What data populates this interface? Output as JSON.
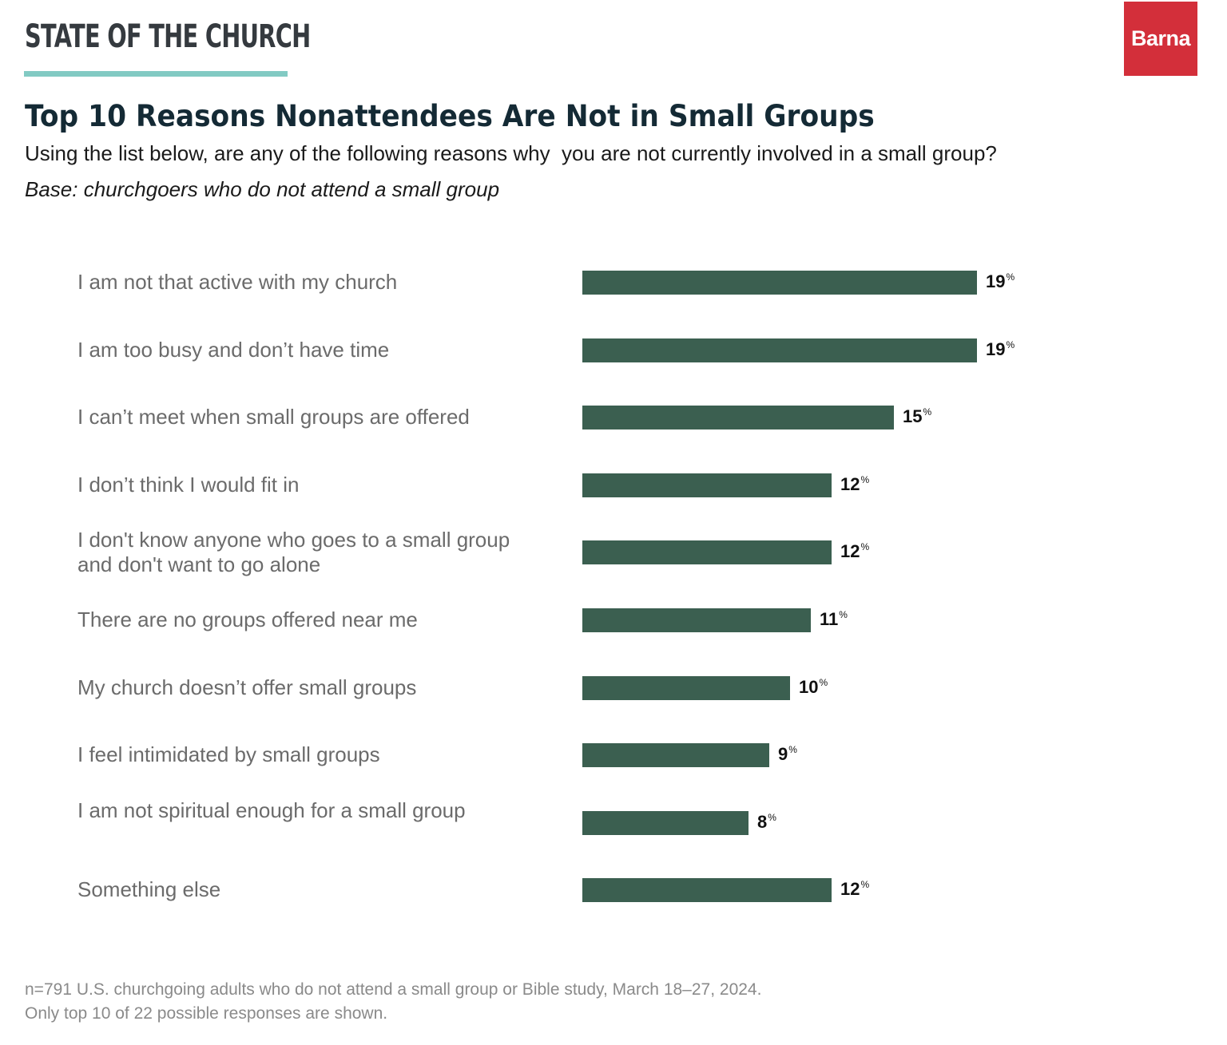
{
  "header": {
    "brand": "STATE OF THE CHURCH",
    "logo": "Barna",
    "colors": {
      "brand_rule": "#82cac3",
      "logo_bg": "#d32f3a",
      "bar": "#3b5f50"
    }
  },
  "chart_data": {
    "type": "bar",
    "orientation": "horizontal",
    "title": "Top 10 Reasons Nonattendees Are Not in Small Groups",
    "subtitle": "Using the list below, are any of the following reasons why  you are not currently involved in a small group?",
    "base": "Base: churchgoers who do not attend a small group",
    "xlabel": "",
    "ylabel": "",
    "unit": "%",
    "grid": false,
    "xlim": [
      0,
      19
    ],
    "categories": [
      "I am not that active with my church",
      "I am too busy and don’t have time",
      "I can’t meet when small groups are offered",
      "I don’t think I would fit in",
      "I don't know anyone who goes to a small group and don't want to go alone",
      "There are no groups offered near me",
      "My church doesn’t offer small groups",
      "I feel intimidated by small groups",
      "I am not spiritual enough for a small group",
      "Something else"
    ],
    "values": [
      19,
      19,
      15,
      12,
      12,
      11,
      10,
      9,
      8,
      12
    ]
  },
  "footer": {
    "line1": "n=791 U.S. churchgoing adults who do not attend a small group or Bible study, March 18–27, 2024.",
    "line2": "Only top 10 of 22 possible responses are shown."
  }
}
